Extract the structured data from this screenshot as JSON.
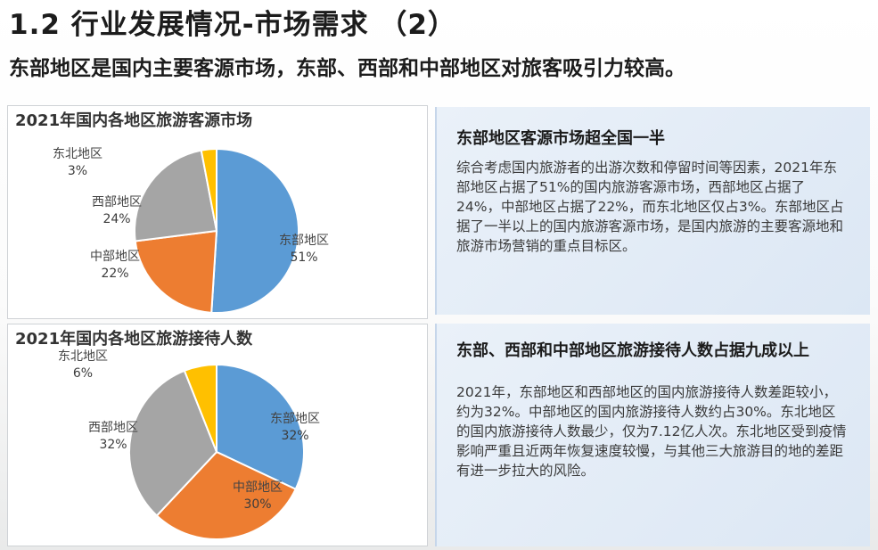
{
  "header": {
    "title": "1.2 行业发展情况-市场需求 （2）",
    "subtitle": "东部地区是国内主要客源市场，东部、西部和中部地区对旅客吸引力较高。"
  },
  "chart_data": [
    {
      "type": "pie",
      "title": "2021年国内各地区旅游客源市场",
      "categories": [
        "东部地区",
        "中部地区",
        "西部地区",
        "东北地区"
      ],
      "values": [
        51,
        22,
        24,
        3
      ],
      "value_labels": [
        "51%",
        "22%",
        "24%",
        "3%"
      ],
      "colors": [
        "#5b9bd5",
        "#ed7d31",
        "#a5a5a5",
        "#ffc000"
      ]
    },
    {
      "type": "pie",
      "title": "2021年国内各地区旅游接待人数",
      "categories": [
        "东部地区",
        "中部地区",
        "西部地区",
        "东北地区"
      ],
      "values": [
        32,
        30,
        32,
        6
      ],
      "value_labels": [
        "32%",
        "30%",
        "32%",
        "6%"
      ],
      "colors": [
        "#5b9bd5",
        "#ed7d31",
        "#a5a5a5",
        "#ffc000"
      ]
    }
  ],
  "panels": [
    {
      "heading": "东部地区客源市场超全国一半",
      "body": "综合考虑国内旅游者的出游次数和停留时间等因素，2021年东部地区占据了51%的国内旅游客源市场，西部地区占据了24%，中部地区占据了22%，而东北地区仅占3%。东部地区占据了一半以上的国内旅游客源市场，是国内旅游的主要客源地和旅游市场营销的重点目标区。"
    },
    {
      "heading": "东部、西部和中部地区旅游接待人数占据九成以上",
      "body": "2021年，东部地区和西部地区的国内旅游接待人数差距较小，约为32%。中部地区的国内旅游接待人数约占30%。东北地区的国内旅游接待人数最少，仅为7.12亿人次。东北地区受到疫情影响严重且近两年恢复速度较慢，与其他三大旅游目的地的差距有进一步拉大的风险。"
    }
  ]
}
